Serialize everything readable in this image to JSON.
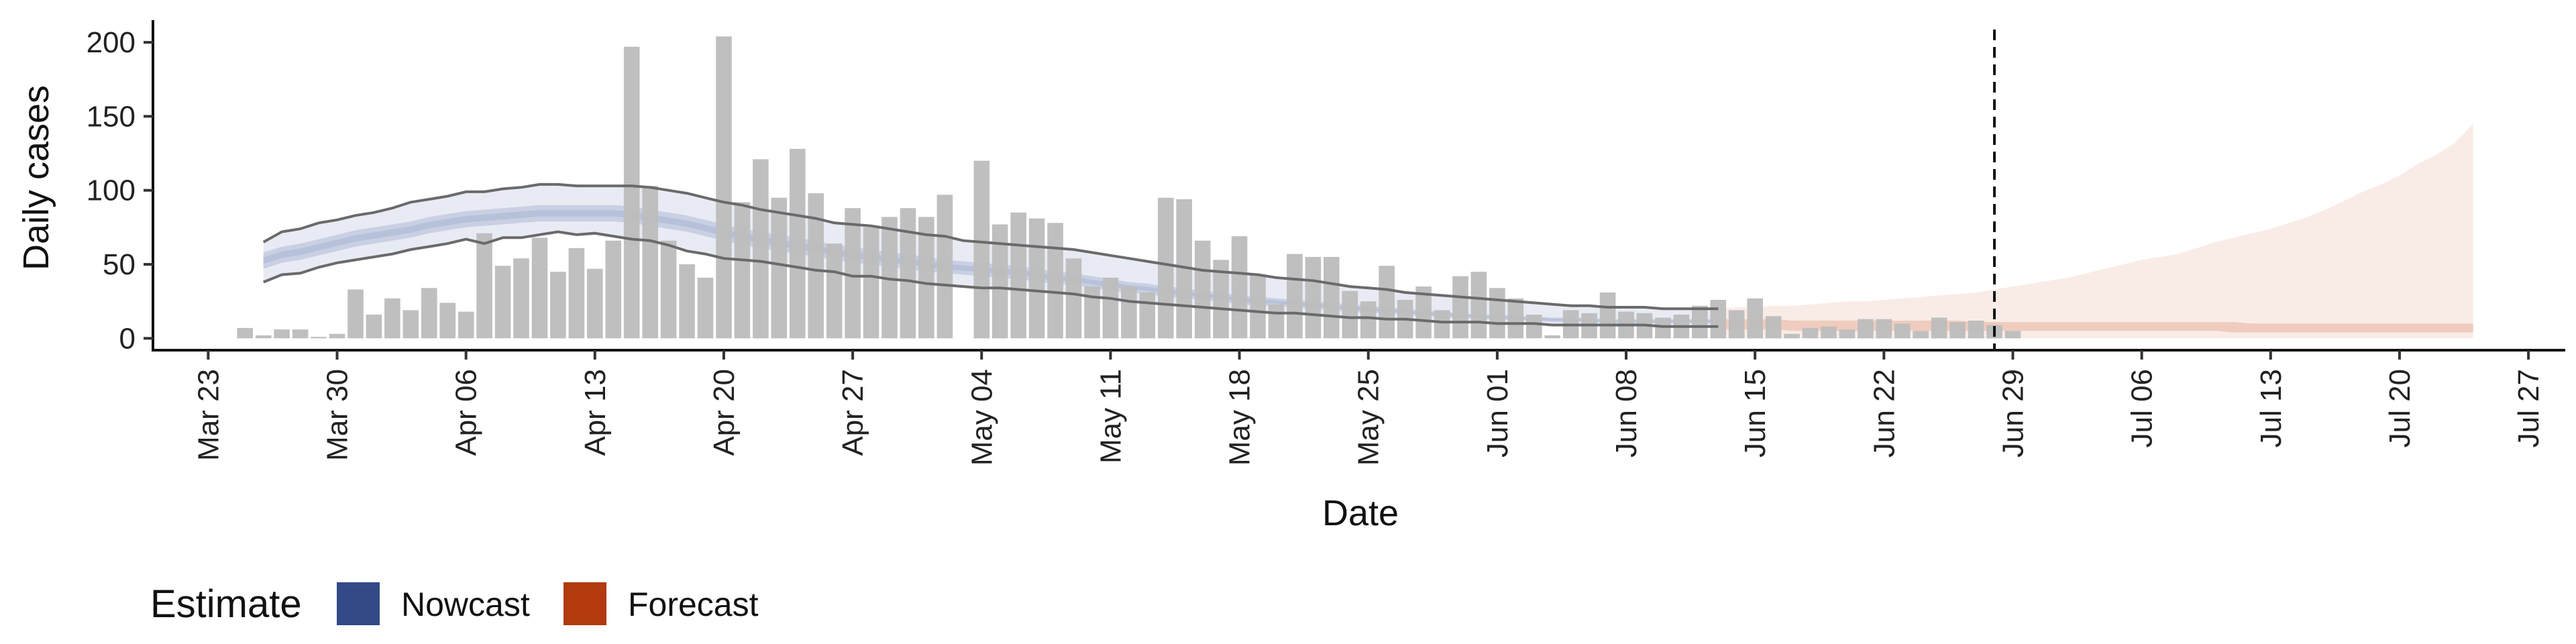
{
  "chart_data": {
    "type": "bar",
    "xlabel": "Date",
    "ylabel": "Daily cases",
    "x_axis_type": "date",
    "xlim": [
      "2020-03-20",
      "2020-07-29"
    ],
    "ylim": [
      -8,
      215
    ],
    "grid": false,
    "y_ticks": [
      0,
      50,
      100,
      150,
      200
    ],
    "x_ticks": [
      {
        "date": "2020-03-23",
        "label": "Mar 23"
      },
      {
        "date": "2020-03-30",
        "label": "Mar 30"
      },
      {
        "date": "2020-04-06",
        "label": "Apr 06"
      },
      {
        "date": "2020-04-13",
        "label": "Apr 13"
      },
      {
        "date": "2020-04-20",
        "label": "Apr 20"
      },
      {
        "date": "2020-04-27",
        "label": "Apr 27"
      },
      {
        "date": "2020-05-04",
        "label": "May 04"
      },
      {
        "date": "2020-05-11",
        "label": "May 11"
      },
      {
        "date": "2020-05-18",
        "label": "May 18"
      },
      {
        "date": "2020-05-25",
        "label": "May 25"
      },
      {
        "date": "2020-06-01",
        "label": "Jun 01"
      },
      {
        "date": "2020-06-08",
        "label": "Jun 08"
      },
      {
        "date": "2020-06-15",
        "label": "Jun 15"
      },
      {
        "date": "2020-06-22",
        "label": "Jun 22"
      },
      {
        "date": "2020-06-29",
        "label": "Jun 29"
      },
      {
        "date": "2020-07-06",
        "label": "Jul 06"
      },
      {
        "date": "2020-07-13",
        "label": "Jul 13"
      },
      {
        "date": "2020-07-20",
        "label": "Jul 20"
      },
      {
        "date": "2020-07-27",
        "label": "Jul 27"
      }
    ],
    "legend": {
      "title": "Estimate",
      "position": "bottom-left",
      "items": [
        {
          "label": "Nowcast",
          "color": "#334a87"
        },
        {
          "label": "Forecast",
          "color": "#b23a0e"
        }
      ]
    },
    "colors": {
      "bars": "#bdbdbd",
      "nowcast_outer": "#e9ebf4",
      "nowcast_mid": "#c9d0e3",
      "nowcast_inner": "#b7c1d9",
      "forecast_outer": "#f9ece7",
      "forecast_inner": "#efccbd",
      "ci_lines": "#6a6a6a",
      "vline": "#111111"
    },
    "vline_date": "2020-06-28",
    "bars": {
      "start_date": "2020-03-25",
      "values": [
        7,
        2,
        6,
        6,
        1,
        3,
        33,
        16,
        27,
        19,
        34,
        24,
        18,
        71,
        49,
        54,
        68,
        45,
        61,
        47,
        66,
        197,
        103,
        66,
        50,
        41,
        204,
        92,
        121,
        95,
        128,
        98,
        64,
        88,
        75,
        82,
        88,
        82,
        97,
        0,
        120,
        77,
        85,
        81,
        78,
        54,
        35,
        41,
        35,
        31,
        95,
        94,
        66,
        53,
        69,
        43,
        23,
        57,
        55,
        55,
        32,
        25,
        49,
        26,
        35,
        19,
        42,
        45,
        34,
        27,
        16,
        2,
        19,
        17,
        31,
        18,
        17,
        14,
        16,
        22,
        26,
        19,
        27,
        15,
        3,
        7,
        8,
        6,
        13,
        13,
        10,
        5,
        14,
        11,
        12,
        9,
        5
      ]
    },
    "series": [
      {
        "id": "nowcast",
        "start_date": "2020-03-26",
        "end_date": "2020-06-13",
        "outer_upper": [
          65,
          72,
          74,
          78,
          80,
          83,
          85,
          88,
          92,
          94,
          96,
          99,
          99,
          101,
          102,
          104,
          104,
          103,
          103,
          103,
          103,
          102,
          100,
          98,
          95,
          92,
          90,
          87,
          85,
          83,
          81,
          78,
          77,
          76,
          74,
          72,
          70,
          69,
          66,
          65,
          64,
          63,
          62,
          61,
          60,
          58,
          56,
          54,
          52,
          50,
          48,
          46,
          45,
          44,
          43,
          41,
          40,
          39,
          37,
          35,
          34,
          33,
          31,
          30,
          29,
          28,
          27,
          26,
          25,
          24,
          23,
          22,
          22,
          21,
          21,
          21,
          20,
          20,
          20,
          20
        ],
        "upper90": [
          58,
          62,
          64,
          67,
          70,
          73,
          75,
          77,
          79,
          82,
          84,
          86,
          87,
          88,
          89,
          90,
          90,
          90,
          90,
          90,
          89,
          87,
          85,
          83,
          80,
          77,
          74,
          72,
          70,
          68,
          66,
          63,
          62,
          60,
          58,
          57,
          55,
          53,
          52,
          51,
          50,
          49,
          47,
          45,
          44,
          42,
          40,
          38,
          37,
          35,
          34,
          32,
          31,
          29,
          28,
          27,
          26,
          25,
          24,
          23,
          22,
          21,
          20,
          19,
          18,
          17,
          16,
          16,
          15,
          15,
          14,
          14,
          14,
          13,
          13,
          13,
          13,
          13,
          13,
          13
        ],
        "lower90": [
          47,
          51,
          53,
          56,
          59,
          62,
          64,
          66,
          68,
          71,
          73,
          75,
          76,
          77,
          78,
          79,
          79,
          79,
          79,
          79,
          78,
          76,
          74,
          72,
          69,
          66,
          63,
          61,
          59,
          57,
          55,
          53,
          51,
          50,
          48,
          47,
          45,
          44,
          43,
          42,
          41,
          40,
          38,
          37,
          36,
          34,
          32,
          31,
          30,
          28,
          27,
          26,
          25,
          23,
          22,
          22,
          21,
          20,
          19,
          18,
          17,
          17,
          16,
          15,
          14,
          14,
          13,
          13,
          12,
          12,
          11,
          11,
          11,
          10,
          10,
          10,
          10,
          10,
          10,
          10
        ],
        "outer_lower": [
          38,
          43,
          44,
          48,
          51,
          53,
          55,
          57,
          60,
          62,
          64,
          67,
          64,
          68,
          68,
          70,
          72,
          70,
          71,
          69,
          67,
          66,
          63,
          59,
          57,
          54,
          53,
          52,
          50,
          48,
          46,
          45,
          42,
          42,
          40,
          39,
          37,
          36,
          35,
          34,
          34,
          33,
          32,
          31,
          30,
          28,
          27,
          25,
          24,
          23,
          22,
          21,
          20,
          19,
          18,
          17,
          17,
          16,
          15,
          14,
          14,
          13,
          13,
          12,
          11,
          11,
          11,
          10,
          10,
          10,
          9,
          9,
          9,
          9,
          9,
          9,
          8,
          8,
          8,
          8
        ]
      },
      {
        "id": "forecast",
        "start_date": "2020-06-13",
        "end_date": "2020-07-24",
        "upper": [
          20,
          21,
          21,
          22,
          22,
          23,
          24,
          25,
          25,
          26,
          27,
          28,
          29,
          30,
          31,
          33,
          35,
          37,
          39,
          41,
          44,
          47,
          50,
          53,
          55,
          57,
          61,
          65,
          68,
          71,
          74,
          78,
          82,
          87,
          93,
          99,
          104,
          110,
          118,
          124,
          132,
          145
        ],
        "inner_upper": [
          13,
          13,
          13,
          13,
          12,
          12,
          12,
          12,
          12,
          12,
          12,
          12,
          12,
          12,
          11,
          11,
          11,
          11,
          11,
          11,
          11,
          11,
          11,
          11,
          11,
          11,
          11,
          11,
          11,
          10,
          10,
          10,
          10,
          10,
          10,
          10,
          10,
          10,
          10,
          10,
          10,
          10
        ],
        "inner_lower": [
          6,
          6,
          6,
          6,
          5,
          5,
          5,
          5,
          5,
          5,
          5,
          5,
          5,
          5,
          5,
          5,
          5,
          5,
          5,
          5,
          5,
          5,
          5,
          5,
          5,
          5,
          5,
          5,
          4,
          4,
          4,
          4,
          4,
          4,
          4,
          4,
          4,
          4,
          4,
          4,
          4,
          4
        ],
        "lower": [
          0,
          0,
          0,
          0,
          0,
          0,
          0,
          0,
          0,
          0,
          0,
          0,
          0,
          0,
          0,
          0,
          0,
          0,
          0,
          0,
          0,
          0,
          0,
          0,
          0,
          0,
          0,
          0,
          0,
          0,
          0,
          0,
          0,
          0,
          0,
          0,
          0,
          0,
          0,
          0,
          0,
          0
        ]
      }
    ]
  }
}
